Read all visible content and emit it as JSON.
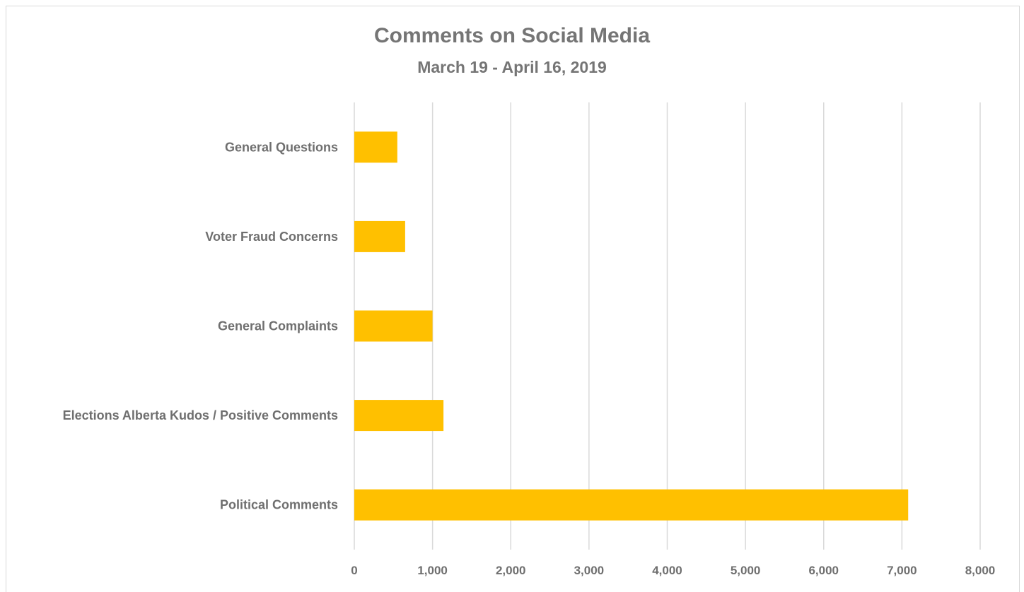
{
  "chart_data": {
    "type": "bar",
    "orientation": "horizontal",
    "title": "Comments on Social Media",
    "subtitle": "March 19 - April 16, 2019",
    "categories": [
      "General Questions",
      "Voter Fraud Concerns",
      "General Complaints",
      "Elections Alberta Kudos / Positive Comments",
      "Political Comments"
    ],
    "values": [
      550,
      650,
      1000,
      1140,
      7080
    ],
    "xlim": [
      0,
      8000
    ],
    "xticks": [
      0,
      1000,
      2000,
      3000,
      4000,
      5000,
      6000,
      7000,
      8000
    ],
    "xtick_labels": [
      "0",
      "1,000",
      "2,000",
      "3,000",
      "4,000",
      "5,000",
      "6,000",
      "7,000",
      "8,000"
    ],
    "bar_color": "#FFC000",
    "grid": "vertical",
    "legend": "none"
  }
}
